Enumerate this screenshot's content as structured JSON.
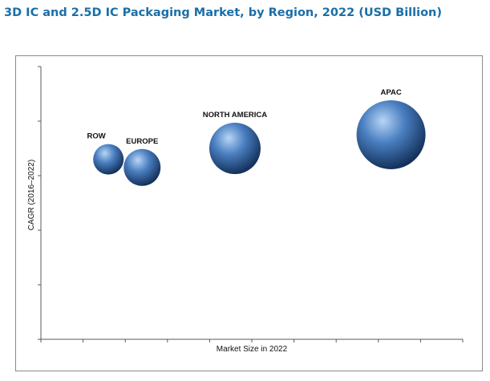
{
  "colors": {
    "title": "#1a6fa8",
    "axis": "#5a5a5a",
    "bubble_highlight": "#b8d6f5",
    "bubble_mid": "#4a7fc1",
    "bubble_dark": "#132f58",
    "label": "#111111"
  },
  "chart_data": {
    "type": "bubble",
    "title": "3D IC and 2.5D IC Packaging Market, by Region, 2022 (USD Billion)",
    "xlabel": "Market Size in 2022",
    "ylabel": "CAGR (2016–2022)",
    "x_ticks_labeled": false,
    "y_ticks_labeled": false,
    "xlim": [
      0,
      100
    ],
    "ylim": [
      0,
      100
    ],
    "grid": false,
    "legend": "none",
    "points": [
      {
        "label": "ROW",
        "x": 16,
        "y": 66,
        "size": 19
      },
      {
        "label": "EUROPE",
        "x": 24,
        "y": 63,
        "size": 23
      },
      {
        "label": "NORTH AMERICA",
        "x": 46,
        "y": 70,
        "size": 32
      },
      {
        "label": "APAC",
        "x": 83,
        "y": 75,
        "size": 43
      }
    ]
  }
}
